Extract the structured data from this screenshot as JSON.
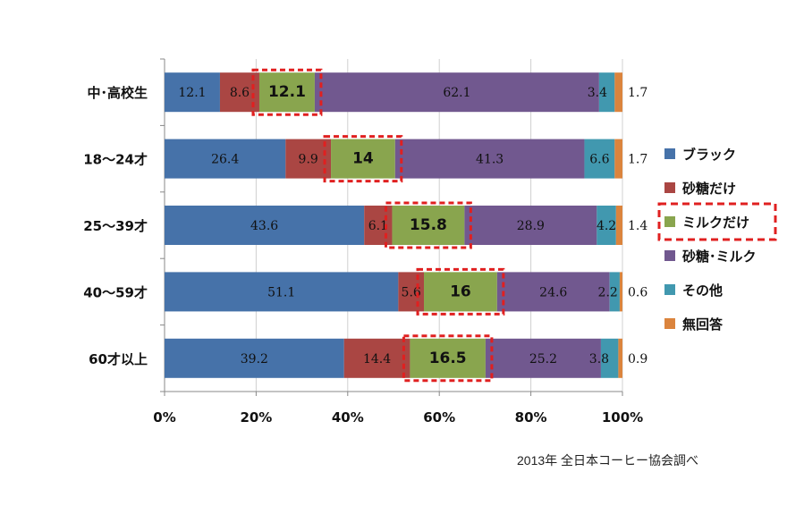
{
  "chart_data": {
    "type": "bar",
    "orientation": "horizontal",
    "stacked": "percent",
    "categories": [
      "中･高校生",
      "18～24才",
      "25～39才",
      "40～59才",
      "60才以上"
    ],
    "series": [
      {
        "name": "ブラック",
        "color": "#4672A9",
        "values": [
          12.1,
          26.4,
          43.6,
          51.1,
          39.2
        ]
      },
      {
        "name": "砂糖だけ",
        "color": "#AA4643",
        "values": [
          8.6,
          9.9,
          6.1,
          5.6,
          14.4
        ]
      },
      {
        "name": "ミルクだけ",
        "color": "#89A54E",
        "values": [
          12.1,
          14,
          15.8,
          16,
          16.5
        ]
      },
      {
        "name": "砂糖･ミルク",
        "color": "#71588F",
        "values": [
          62.1,
          41.3,
          28.9,
          24.6,
          25.2
        ]
      },
      {
        "name": "その他",
        "color": "#4198AF",
        "values": [
          3.4,
          6.6,
          4.2,
          2.2,
          3.8
        ]
      },
      {
        "name": "無回答",
        "color": "#DB843D",
        "values": [
          1.7,
          1.7,
          1.4,
          0.6,
          0.9
        ]
      }
    ],
    "x_ticks": [
      "0%",
      "20%",
      "40%",
      "60%",
      "80%",
      "100%"
    ],
    "xlim": [
      0,
      100
    ],
    "highlight_series": "ミルクだけ",
    "highlight_color": "#E02020",
    "legend_position": "right",
    "grid": true
  },
  "source_note": "2013年  全日本コーヒー協会調べ"
}
